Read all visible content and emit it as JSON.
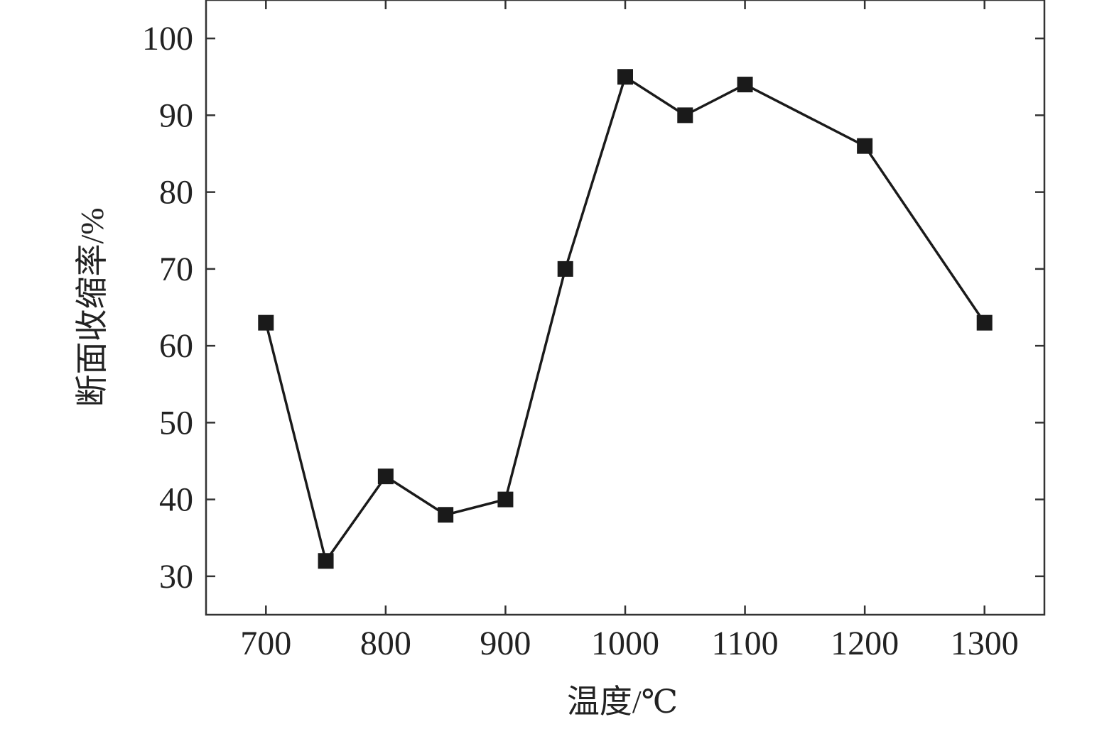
{
  "chart_data": {
    "type": "line",
    "xlabel": "温度/℃",
    "ylabel": "断面收缩率/%",
    "xlim": [
      650,
      1350
    ],
    "ylim": [
      25,
      105
    ],
    "x_ticks": [
      700,
      800,
      900,
      1000,
      1100,
      1200,
      1300
    ],
    "y_ticks": [
      30,
      40,
      50,
      60,
      70,
      80,
      90,
      100
    ],
    "x_tick_labels": [
      "700",
      "800",
      "900",
      "1000",
      "1100",
      "1200",
      "1300"
    ],
    "y_tick_labels": [
      "30",
      "40",
      "50",
      "60",
      "70",
      "80",
      "90",
      "100"
    ],
    "series": [
      {
        "x": [
          700,
          750,
          800,
          850,
          900,
          950,
          1000,
          1050,
          1100,
          1200,
          1300
        ],
        "y": [
          63,
          32,
          43,
          38,
          40,
          70,
          95,
          90,
          94,
          86,
          63
        ]
      }
    ],
    "grid": false,
    "marker": "square",
    "colors": {
      "line": "#1a1a1a",
      "marker": "#1a1a1a",
      "axis": "#333333",
      "text": "#222222",
      "background": "#ffffff"
    }
  }
}
